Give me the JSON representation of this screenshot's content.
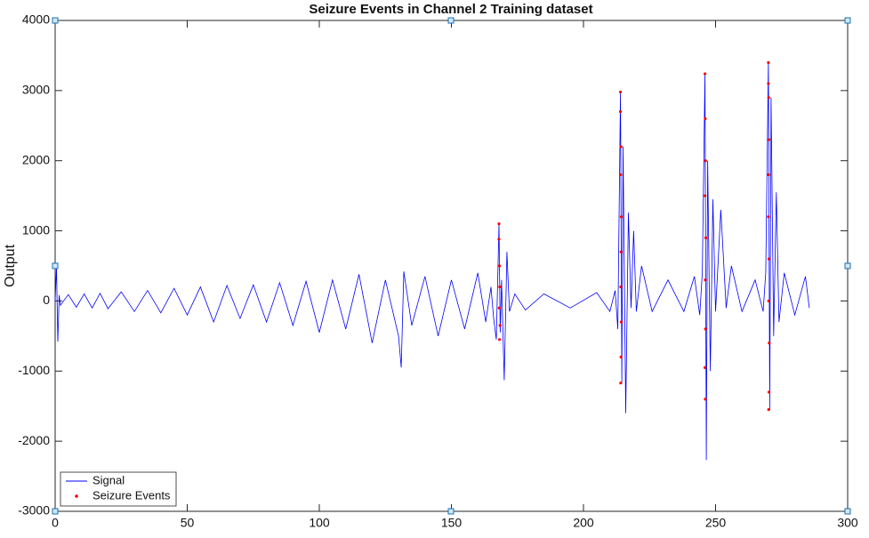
{
  "chart_data": {
    "type": "line",
    "title": "Seizure Events in Channel 2 Training dataset",
    "y_label": "Output",
    "xlim": [
      0,
      300
    ],
    "xticks": [
      0,
      50,
      100,
      150,
      200,
      250,
      300
    ],
    "ylim": [
      -3000,
      4000
    ],
    "yticks": [
      -3000,
      -2000,
      -1000,
      0,
      1000,
      2000,
      3000,
      4000
    ],
    "grid": false,
    "legend": "lower left",
    "series": [
      {
        "name": "Signal",
        "color": "#0000ff",
        "type": "line",
        "x": [
          0,
          0.5,
          1,
          1.5,
          2,
          5,
          8,
          11,
          14,
          17,
          20,
          25,
          30,
          35,
          40,
          45,
          50,
          55,
          60,
          65,
          70,
          75,
          80,
          85,
          90,
          95,
          100,
          105,
          110,
          115,
          120,
          125,
          130,
          131,
          132,
          135,
          140,
          145,
          150,
          155,
          160,
          163,
          165,
          166,
          167,
          168,
          168.5,
          169,
          170,
          171,
          172,
          174,
          178,
          185,
          195,
          205,
          210,
          212,
          213,
          214,
          214.5,
          215,
          216,
          217,
          218,
          219,
          220,
          222,
          226,
          232,
          238,
          242,
          244,
          245,
          246,
          246.5,
          247,
          248,
          249,
          250,
          252,
          254,
          256,
          260,
          265,
          268,
          269,
          270,
          270.5,
          271,
          272,
          273,
          274,
          276,
          280,
          284,
          285.5
        ],
        "values": [
          0,
          500,
          -580,
          80,
          -60,
          90,
          -90,
          100,
          -100,
          110,
          -110,
          130,
          -150,
          150,
          -170,
          180,
          -200,
          200,
          -300,
          220,
          -250,
          230,
          -300,
          260,
          -350,
          280,
          -450,
          300,
          -400,
          380,
          -600,
          300,
          -500,
          -950,
          420,
          -350,
          350,
          -500,
          300,
          -400,
          400,
          -300,
          200,
          -250,
          -550,
          1100,
          -450,
          300,
          -1130,
          700,
          -150,
          100,
          -130,
          100,
          -100,
          120,
          -150,
          150,
          -400,
          2980,
          -1170,
          2200,
          -1600,
          1260,
          -100,
          1000,
          -150,
          500,
          -150,
          300,
          -150,
          350,
          -200,
          400,
          3240,
          -2270,
          2000,
          -1000,
          1450,
          -150,
          1300,
          -100,
          500,
          -150,
          300,
          -150,
          400,
          3410,
          -1550,
          2900,
          -500,
          1550,
          -300,
          400,
          -200,
          350,
          -100
        ]
      },
      {
        "name": "Seizure Events",
        "color": "#ff0000",
        "type": "scatter",
        "x": [
          168,
          168,
          168.2,
          168.3,
          168.1,
          168.4,
          168.2,
          214,
          214,
          214.2,
          214.1,
          214.3,
          214.2,
          214.1,
          214.3,
          214.2,
          214.1,
          246,
          246.1,
          246.2,
          246,
          246.3,
          246.1,
          246.2,
          246,
          246.1,
          270,
          270,
          270.1,
          270.2,
          270.1,
          270,
          270.2,
          270.1,
          270.3,
          270.2,
          270.1
        ],
        "values": [
          1100,
          880,
          500,
          200,
          -100,
          -350,
          -550,
          2980,
          2700,
          2200,
          1800,
          1200,
          700,
          200,
          -300,
          -800,
          -1170,
          3240,
          2600,
          2000,
          1500,
          900,
          300,
          -400,
          -950,
          -1400,
          3400,
          3100,
          2900,
          2300,
          1800,
          1200,
          600,
          0,
          -600,
          -1300,
          -1550
        ]
      }
    ]
  }
}
